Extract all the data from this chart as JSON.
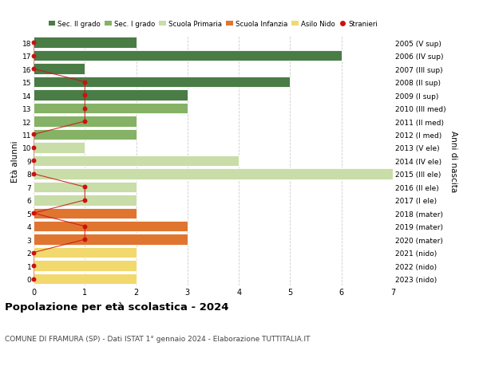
{
  "ages": [
    18,
    17,
    16,
    15,
    14,
    13,
    12,
    11,
    10,
    9,
    8,
    7,
    6,
    5,
    4,
    3,
    2,
    1,
    0
  ],
  "years": [
    "2005 (V sup)",
    "2006 (IV sup)",
    "2007 (III sup)",
    "2008 (II sup)",
    "2009 (I sup)",
    "2010 (III med)",
    "2011 (II med)",
    "2012 (I med)",
    "2013 (V ele)",
    "2014 (IV ele)",
    "2015 (III ele)",
    "2016 (II ele)",
    "2017 (I ele)",
    "2018 (mater)",
    "2019 (mater)",
    "2020 (mater)",
    "2021 (nido)",
    "2022 (nido)",
    "2023 (nido)"
  ],
  "values": [
    2,
    6,
    1,
    5,
    3,
    3,
    2,
    2,
    1,
    4,
    7,
    2,
    2,
    2,
    3,
    3,
    2,
    2,
    2
  ],
  "stranieri": [
    0,
    0,
    0,
    1,
    1,
    1,
    1,
    0,
    0,
    0,
    0,
    1,
    1,
    0,
    1,
    1,
    0,
    0,
    0
  ],
  "categories": {
    "sec2": [
      18,
      17,
      16,
      15,
      14
    ],
    "sec1": [
      13,
      12,
      11
    ],
    "primaria": [
      10,
      9,
      8,
      7,
      6
    ],
    "infanzia": [
      5,
      4,
      3
    ],
    "nido": [
      2,
      1,
      0
    ]
  },
  "colors": {
    "sec2": "#4a7c45",
    "sec1": "#85b265",
    "primaria": "#c8dda8",
    "infanzia": "#e07530",
    "nido": "#f2d96e"
  },
  "legend_labels": [
    "Sec. II grado",
    "Sec. I grado",
    "Scuola Primaria",
    "Scuola Infanzia",
    "Asilo Nido",
    "Stranieri"
  ],
  "legend_colors": [
    "#4a7c45",
    "#85b265",
    "#c8dda8",
    "#e07530",
    "#f2d96e",
    "#cc1111"
  ],
  "stranieri_color": "#cc1111",
  "stranieri_line_color": "#cc1111",
  "title": "Popolazione per età scolastica - 2024",
  "subtitle": "COMUNE DI FRAMURA (SP) - Dati ISTAT 1° gennaio 2024 - Elaborazione TUTTITALIA.IT",
  "ylabel_left": "Età alunni",
  "ylabel_right": "Anni di nascita",
  "xlim": [
    0,
    7
  ],
  "ylim": [
    -0.5,
    18.5
  ],
  "background_color": "#ffffff",
  "grid_color": "#cccccc",
  "bar_height": 0.82
}
